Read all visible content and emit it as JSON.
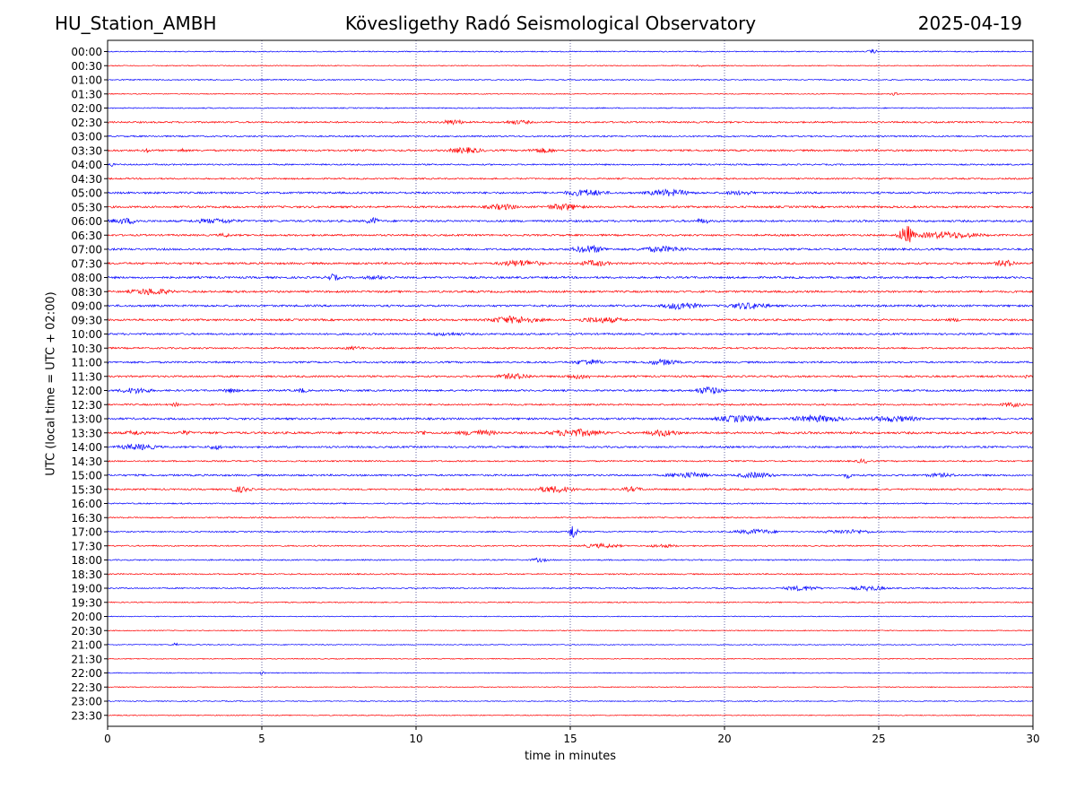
{
  "header": {
    "station": "HU_Station_AMBH",
    "title": "Kövesligethy Radó Seismological Observatory",
    "date": "2025-04-19"
  },
  "chart_data": {
    "type": "line",
    "subtype": "helicorder",
    "xlabel": "time in minutes",
    "ylabel": "UTC (local time = UTC + 02:00)",
    "xlim": [
      0,
      30
    ],
    "xticks": [
      0,
      5,
      10,
      15,
      20,
      25,
      30
    ],
    "vertical_gridlines": [
      5,
      10,
      15,
      20,
      25
    ],
    "trace_colors": [
      "#0000ff",
      "#ff0000"
    ],
    "rows": [
      "00:00",
      "00:30",
      "01:00",
      "01:30",
      "02:00",
      "02:30",
      "03:00",
      "03:30",
      "04:00",
      "04:30",
      "05:00",
      "05:30",
      "06:00",
      "06:30",
      "07:00",
      "07:30",
      "08:00",
      "08:30",
      "09:00",
      "09:30",
      "10:00",
      "10:30",
      "11:00",
      "11:30",
      "12:00",
      "12:30",
      "13:00",
      "13:30",
      "14:00",
      "14:30",
      "15:00",
      "15:30",
      "16:00",
      "16:30",
      "17:00",
      "17:30",
      "18:00",
      "18:30",
      "19:00",
      "19:30",
      "20:00",
      "20:30",
      "21:00",
      "21:30",
      "22:00",
      "22:30",
      "23:00",
      "23:30"
    ],
    "noise_level": [
      0.6,
      0.5,
      0.6,
      0.5,
      0.6,
      0.9,
      0.8,
      1.0,
      0.8,
      0.8,
      1.1,
      1.1,
      1.1,
      1.0,
      1.1,
      1.1,
      1.1,
      1.1,
      1.1,
      1.1,
      1.0,
      0.9,
      1.0,
      1.0,
      1.0,
      0.9,
      1.1,
      1.2,
      1.0,
      0.8,
      1.0,
      0.9,
      0.7,
      0.7,
      0.7,
      0.7,
      0.7,
      0.7,
      0.7,
      0.6,
      0.5,
      0.5,
      0.5,
      0.5,
      0.5,
      0.5,
      0.5,
      0.5
    ],
    "events": [
      {
        "row": 0,
        "minute": 24.8,
        "width": 0.35,
        "amplitude": 2.5
      },
      {
        "row": 1,
        "minute": 19.2,
        "width": 0.3,
        "amplitude": 1.5
      },
      {
        "row": 3,
        "minute": 25.5,
        "width": 0.3,
        "amplitude": 1.8
      },
      {
        "row": 5,
        "minute": 11.2,
        "width": 0.9,
        "amplitude": 3
      },
      {
        "row": 5,
        "minute": 13.3,
        "width": 1.1,
        "amplitude": 2.5
      },
      {
        "row": 7,
        "minute": 1.3,
        "width": 0.3,
        "amplitude": 3
      },
      {
        "row": 7,
        "minute": 2.4,
        "width": 0.4,
        "amplitude": 2.5
      },
      {
        "row": 7,
        "minute": 11.6,
        "width": 1.3,
        "amplitude": 3.5
      },
      {
        "row": 7,
        "minute": 14.1,
        "width": 1.0,
        "amplitude": 3
      },
      {
        "row": 8,
        "minute": 0.1,
        "width": 0.25,
        "amplitude": 2.5
      },
      {
        "row": 10,
        "minute": 15.5,
        "width": 1.5,
        "amplitude": 4
      },
      {
        "row": 10,
        "minute": 18.2,
        "width": 1.6,
        "amplitude": 4
      },
      {
        "row": 10,
        "minute": 20.5,
        "width": 1.3,
        "amplitude": 2.5
      },
      {
        "row": 11,
        "minute": 12.8,
        "width": 1.2,
        "amplitude": 3.5
      },
      {
        "row": 11,
        "minute": 14.8,
        "width": 1.3,
        "amplitude": 4
      },
      {
        "row": 12,
        "minute": 0.6,
        "width": 1.2,
        "amplitude": 3.5
      },
      {
        "row": 12,
        "minute": 3.5,
        "width": 1.8,
        "amplitude": 3
      },
      {
        "row": 12,
        "minute": 8.6,
        "width": 0.5,
        "amplitude": 4
      },
      {
        "row": 12,
        "minute": 19.3,
        "width": 0.6,
        "amplitude": 3
      },
      {
        "row": 13,
        "minute": 3.8,
        "width": 0.5,
        "amplitude": 2.5
      },
      {
        "row": 13,
        "minute": 25.9,
        "width": 0.5,
        "amplitude": 11
      },
      {
        "row": 13,
        "minute": 27.2,
        "width": 2.5,
        "amplitude": 4
      },
      {
        "row": 14,
        "minute": 15.6,
        "width": 1.2,
        "amplitude": 4.5
      },
      {
        "row": 14,
        "minute": 18.0,
        "width": 1.8,
        "amplitude": 3.5
      },
      {
        "row": 15,
        "minute": 13.4,
        "width": 1.6,
        "amplitude": 4
      },
      {
        "row": 15,
        "minute": 15.8,
        "width": 1.2,
        "amplitude": 3.5
      },
      {
        "row": 15,
        "minute": 29.1,
        "width": 0.8,
        "amplitude": 4
      },
      {
        "row": 16,
        "minute": 7.3,
        "width": 0.5,
        "amplitude": 4
      },
      {
        "row": 16,
        "minute": 8.8,
        "width": 1.3,
        "amplitude": 2.5
      },
      {
        "row": 17,
        "minute": 1.4,
        "width": 1.5,
        "amplitude": 4
      },
      {
        "row": 18,
        "minute": 18.6,
        "width": 1.3,
        "amplitude": 4.5
      },
      {
        "row": 18,
        "minute": 20.8,
        "width": 1.5,
        "amplitude": 4
      },
      {
        "row": 19,
        "minute": 13.2,
        "width": 1.8,
        "amplitude": 4.5
      },
      {
        "row": 19,
        "minute": 16.0,
        "width": 1.8,
        "amplitude": 3.5
      },
      {
        "row": 19,
        "minute": 27.5,
        "width": 0.8,
        "amplitude": 2
      },
      {
        "row": 20,
        "minute": 11.0,
        "width": 1.8,
        "amplitude": 2
      },
      {
        "row": 21,
        "minute": 8.0,
        "width": 1.0,
        "amplitude": 2
      },
      {
        "row": 22,
        "minute": 15.6,
        "width": 1.1,
        "amplitude": 3.5
      },
      {
        "row": 22,
        "minute": 18.0,
        "width": 1.2,
        "amplitude": 3.5
      },
      {
        "row": 23,
        "minute": 13.2,
        "width": 1.3,
        "amplitude": 3.5
      },
      {
        "row": 23,
        "minute": 15.3,
        "width": 1.2,
        "amplitude": 3
      },
      {
        "row": 23,
        "minute": 29.8,
        "width": 0.3,
        "amplitude": 3
      },
      {
        "row": 24,
        "minute": 0.9,
        "width": 1.2,
        "amplitude": 3.5
      },
      {
        "row": 24,
        "minute": 4.0,
        "width": 0.6,
        "amplitude": 3
      },
      {
        "row": 24,
        "minute": 6.3,
        "width": 0.4,
        "amplitude": 3
      },
      {
        "row": 24,
        "minute": 19.5,
        "width": 1.0,
        "amplitude": 4.5
      },
      {
        "row": 25,
        "minute": 2.2,
        "width": 0.3,
        "amplitude": 2.5
      },
      {
        "row": 25,
        "minute": 29.3,
        "width": 0.8,
        "amplitude": 3
      },
      {
        "row": 26,
        "minute": 20.5,
        "width": 1.8,
        "amplitude": 4
      },
      {
        "row": 26,
        "minute": 23.0,
        "width": 2.0,
        "amplitude": 4
      },
      {
        "row": 26,
        "minute": 25.5,
        "width": 2.0,
        "amplitude": 3.5
      },
      {
        "row": 27,
        "minute": 0.9,
        "width": 0.8,
        "amplitude": 3
      },
      {
        "row": 27,
        "minute": 2.5,
        "width": 0.5,
        "amplitude": 3
      },
      {
        "row": 27,
        "minute": 10.2,
        "width": 0.4,
        "amplitude": 3
      },
      {
        "row": 27,
        "minute": 12.0,
        "width": 1.5,
        "amplitude": 3.5
      },
      {
        "row": 27,
        "minute": 15.2,
        "width": 2.0,
        "amplitude": 4.5
      },
      {
        "row": 27,
        "minute": 18.0,
        "width": 1.2,
        "amplitude": 4
      },
      {
        "row": 28,
        "minute": 1.0,
        "width": 1.5,
        "amplitude": 3.5
      },
      {
        "row": 28,
        "minute": 3.5,
        "width": 0.6,
        "amplitude": 3
      },
      {
        "row": 29,
        "minute": 24.5,
        "width": 0.6,
        "amplitude": 2.5
      },
      {
        "row": 30,
        "minute": 18.8,
        "width": 1.5,
        "amplitude": 3.5
      },
      {
        "row": 30,
        "minute": 21.0,
        "width": 1.3,
        "amplitude": 3.5
      },
      {
        "row": 30,
        "minute": 24.0,
        "width": 0.3,
        "amplitude": 3.5
      },
      {
        "row": 30,
        "minute": 27.0,
        "width": 1.2,
        "amplitude": 2.5
      },
      {
        "row": 31,
        "minute": 4.3,
        "width": 0.8,
        "amplitude": 3.5
      },
      {
        "row": 31,
        "minute": 14.5,
        "width": 1.5,
        "amplitude": 4
      },
      {
        "row": 31,
        "minute": 17.0,
        "width": 0.8,
        "amplitude": 3
      },
      {
        "row": 34,
        "minute": 15.1,
        "width": 0.3,
        "amplitude": 9
      },
      {
        "row": 34,
        "minute": 21.0,
        "width": 1.5,
        "amplitude": 3
      },
      {
        "row": 34,
        "minute": 24.0,
        "width": 2.0,
        "amplitude": 2.5
      },
      {
        "row": 35,
        "minute": 16.0,
        "width": 1.5,
        "amplitude": 2.5
      },
      {
        "row": 35,
        "minute": 18.0,
        "width": 1.2,
        "amplitude": 2
      },
      {
        "row": 36,
        "minute": 14.0,
        "width": 0.6,
        "amplitude": 2.5
      },
      {
        "row": 38,
        "minute": 22.5,
        "width": 1.3,
        "amplitude": 3
      },
      {
        "row": 38,
        "minute": 24.7,
        "width": 1.2,
        "amplitude": 3
      },
      {
        "row": 42,
        "minute": 2.2,
        "width": 0.2,
        "amplitude": 2.5
      },
      {
        "row": 44,
        "minute": 5.0,
        "width": 0.2,
        "amplitude": 2
      }
    ]
  }
}
